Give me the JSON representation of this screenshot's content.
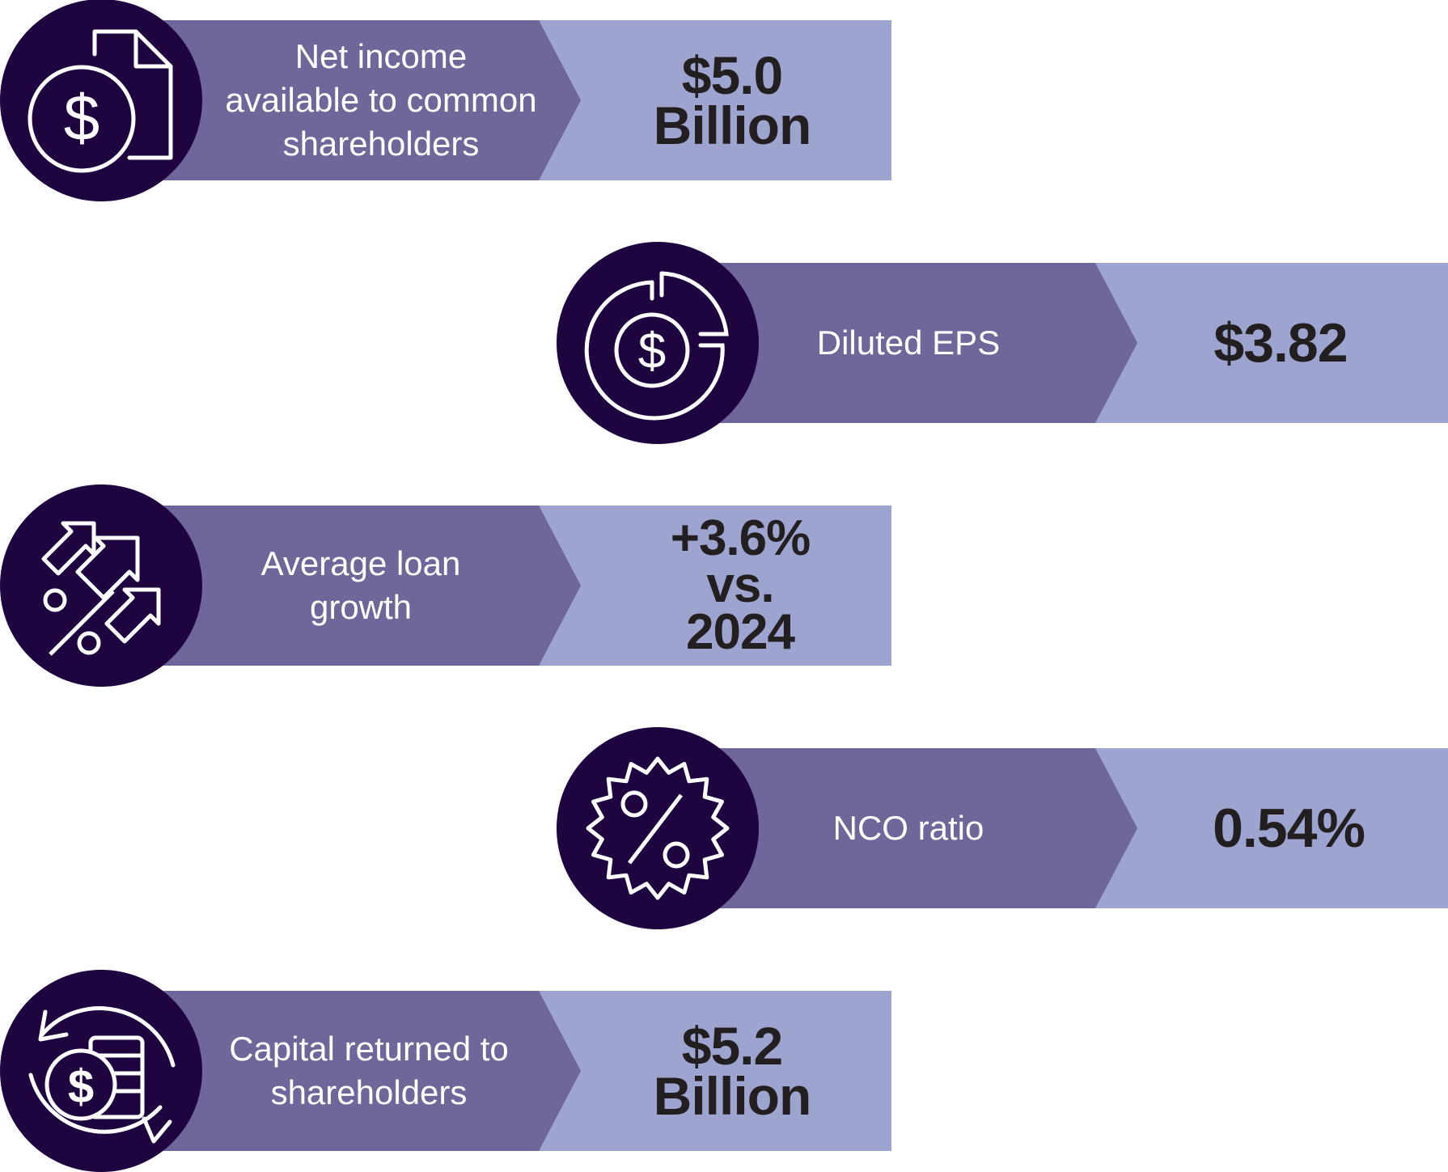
{
  "metrics": [
    {
      "label": "Net income\navailable to common\nshareholders",
      "value": "$5.0\nBillion",
      "icon": "document-dollar-icon"
    },
    {
      "label": "Diluted EPS",
      "value": "$3.82",
      "icon": "dollar-pie-chart-icon"
    },
    {
      "label": "Average loan\ngrowth",
      "value": "+3.6%\nvs.\n2024",
      "icon": "percent-arrows-icon"
    },
    {
      "label": "NCO ratio",
      "value": "0.54%",
      "icon": "percent-badge-icon"
    },
    {
      "label": "Capital returned to\nshareholders",
      "value": "$5.2\nBillion",
      "icon": "dollar-coins-cycle-icon"
    }
  ],
  "colors": {
    "icon_circle": "#1f0540",
    "label_band": "#6f6699",
    "value_band": "#9ea4d0",
    "value_text": "#231f20"
  }
}
